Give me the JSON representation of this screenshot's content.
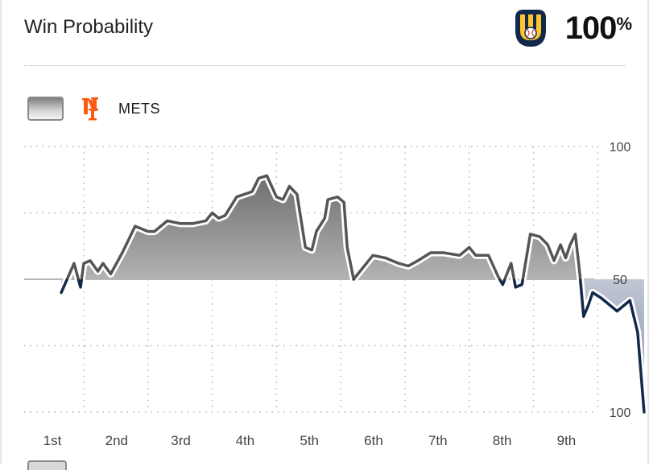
{
  "header": {
    "title": "Win Probability",
    "leader_percent": "100",
    "percent_sign": "%",
    "leader_logo": "brewers-glove-logo"
  },
  "legend": {
    "team": "METS",
    "logo": "mets-ny-logo"
  },
  "colors": {
    "mets_line": "#555555",
    "brewers_line": "#13294b",
    "axis": "#a0a0a0"
  },
  "chart_data": {
    "type": "line",
    "title": "Win Probability",
    "categories": [
      "1st",
      "2nd",
      "3rd",
      "4th",
      "5th",
      "6th",
      "7th",
      "8th",
      "9th"
    ],
    "y_ticks": [
      {
        "value": 100,
        "label": "100"
      },
      {
        "value": 50,
        "label": "50"
      },
      {
        "value": 0,
        "label": "100"
      }
    ],
    "ylim": [
      0,
      100
    ],
    "xlim": [
      0.63,
      9.45
    ],
    "grid": true,
    "series": [
      {
        "name": "METS",
        "points": [
          [
            0.65,
            45
          ],
          [
            0.85,
            56
          ],
          [
            0.95,
            47
          ],
          [
            1.0,
            56
          ],
          [
            1.1,
            57
          ],
          [
            1.22,
            53
          ],
          [
            1.3,
            56
          ],
          [
            1.42,
            52
          ],
          [
            1.6,
            60
          ],
          [
            1.7,
            65
          ],
          [
            1.8,
            70
          ],
          [
            2.0,
            68
          ],
          [
            2.1,
            68
          ],
          [
            2.2,
            70
          ],
          [
            2.3,
            72
          ],
          [
            2.5,
            71
          ],
          [
            2.7,
            71
          ],
          [
            2.9,
            72
          ],
          [
            3.0,
            75
          ],
          [
            3.1,
            73
          ],
          [
            3.2,
            74
          ],
          [
            3.38,
            81
          ],
          [
            3.5,
            82
          ],
          [
            3.62,
            83
          ],
          [
            3.72,
            88
          ],
          [
            3.85,
            89
          ],
          [
            4.0,
            81
          ],
          [
            4.1,
            80
          ],
          [
            4.2,
            85
          ],
          [
            4.32,
            82
          ],
          [
            4.45,
            62
          ],
          [
            4.55,
            61
          ],
          [
            4.62,
            68
          ],
          [
            4.75,
            73
          ],
          [
            4.8,
            80
          ],
          [
            4.95,
            81
          ],
          [
            5.05,
            79
          ],
          [
            5.1,
            62
          ],
          [
            5.2,
            50
          ],
          [
            5.3,
            53
          ],
          [
            5.5,
            59
          ],
          [
            5.7,
            58
          ],
          [
            5.9,
            56
          ],
          [
            6.05,
            55
          ],
          [
            6.2,
            57
          ],
          [
            6.4,
            60
          ],
          [
            6.6,
            60
          ],
          [
            6.85,
            59
          ],
          [
            7.0,
            62
          ],
          [
            7.1,
            59
          ],
          [
            7.3,
            59
          ],
          [
            7.45,
            51
          ],
          [
            7.52,
            48
          ],
          [
            7.65,
            56
          ],
          [
            7.72,
            47
          ],
          [
            7.82,
            48
          ],
          [
            7.95,
            67
          ],
          [
            8.1,
            66
          ],
          [
            8.22,
            63
          ],
          [
            8.32,
            57
          ],
          [
            8.42,
            63
          ],
          [
            8.5,
            58
          ],
          [
            8.57,
            63
          ],
          [
            8.65,
            67
          ],
          [
            8.72,
            52
          ],
          [
            8.78,
            36
          ],
          [
            8.85,
            40
          ],
          [
            8.92,
            45
          ],
          [
            9.05,
            43
          ],
          [
            9.2,
            40
          ],
          [
            9.3,
            38
          ],
          [
            9.5,
            42
          ],
          [
            9.62,
            30
          ],
          [
            9.72,
            0
          ]
        ]
      }
    ]
  }
}
